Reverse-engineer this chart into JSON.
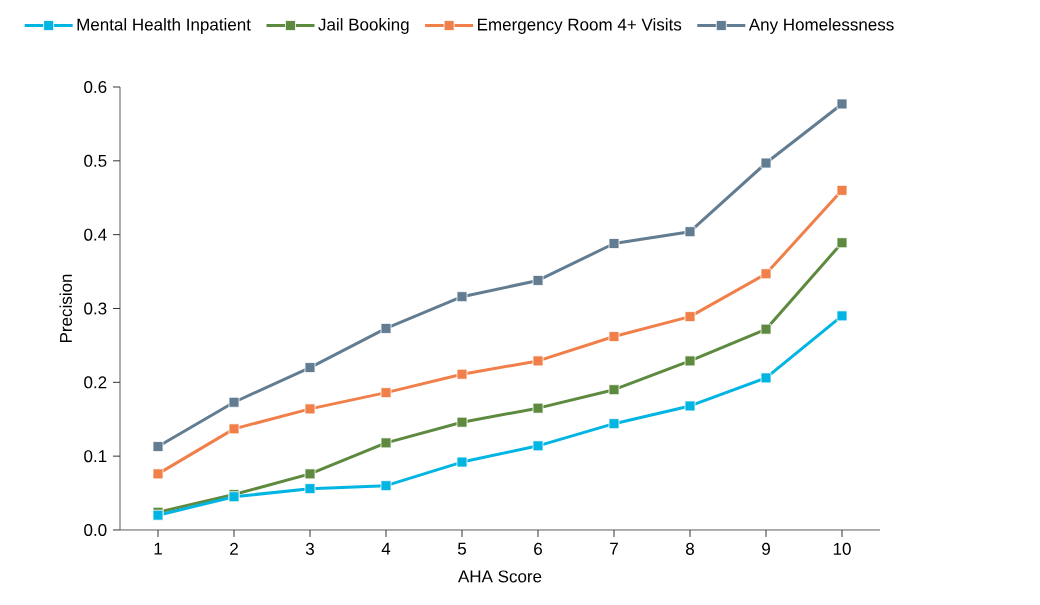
{
  "chart_data": {
    "type": "line",
    "xlabel": "AHA Score",
    "ylabel": "Precision",
    "categories": [
      "1",
      "2",
      "3",
      "4",
      "5",
      "6",
      "7",
      "8",
      "9",
      "10"
    ],
    "series": [
      {
        "name": "Mental Health Inpatient",
        "color": "#00b5e2",
        "values": [
          0.02,
          0.045,
          0.056,
          0.06,
          0.092,
          0.114,
          0.144,
          0.168,
          0.206,
          0.29
        ]
      },
      {
        "name": "Jail Booking",
        "color": "#5e8a3f",
        "values": [
          0.024,
          0.048,
          0.076,
          0.118,
          0.146,
          0.165,
          0.19,
          0.229,
          0.272,
          0.389
        ]
      },
      {
        "name": "Emergency Room 4+ Visits",
        "color": "#f07f4a",
        "values": [
          0.076,
          0.137,
          0.164,
          0.186,
          0.211,
          0.229,
          0.262,
          0.289,
          0.347,
          0.46
        ]
      },
      {
        "name": "Any Homelessness",
        "color": "#627d92",
        "values": [
          0.113,
          0.173,
          0.22,
          0.273,
          0.316,
          0.338,
          0.388,
          0.404,
          0.497,
          0.577
        ]
      }
    ],
    "ylim": [
      0,
      0.6
    ],
    "yticks": [
      {
        "value": 0,
        "label": "0.0"
      },
      0.1,
      0.2,
      0.3,
      0.4,
      0.5,
      0.6
    ],
    "grid": false,
    "legend": "top",
    "marker": "square",
    "line_style": "solid"
  }
}
